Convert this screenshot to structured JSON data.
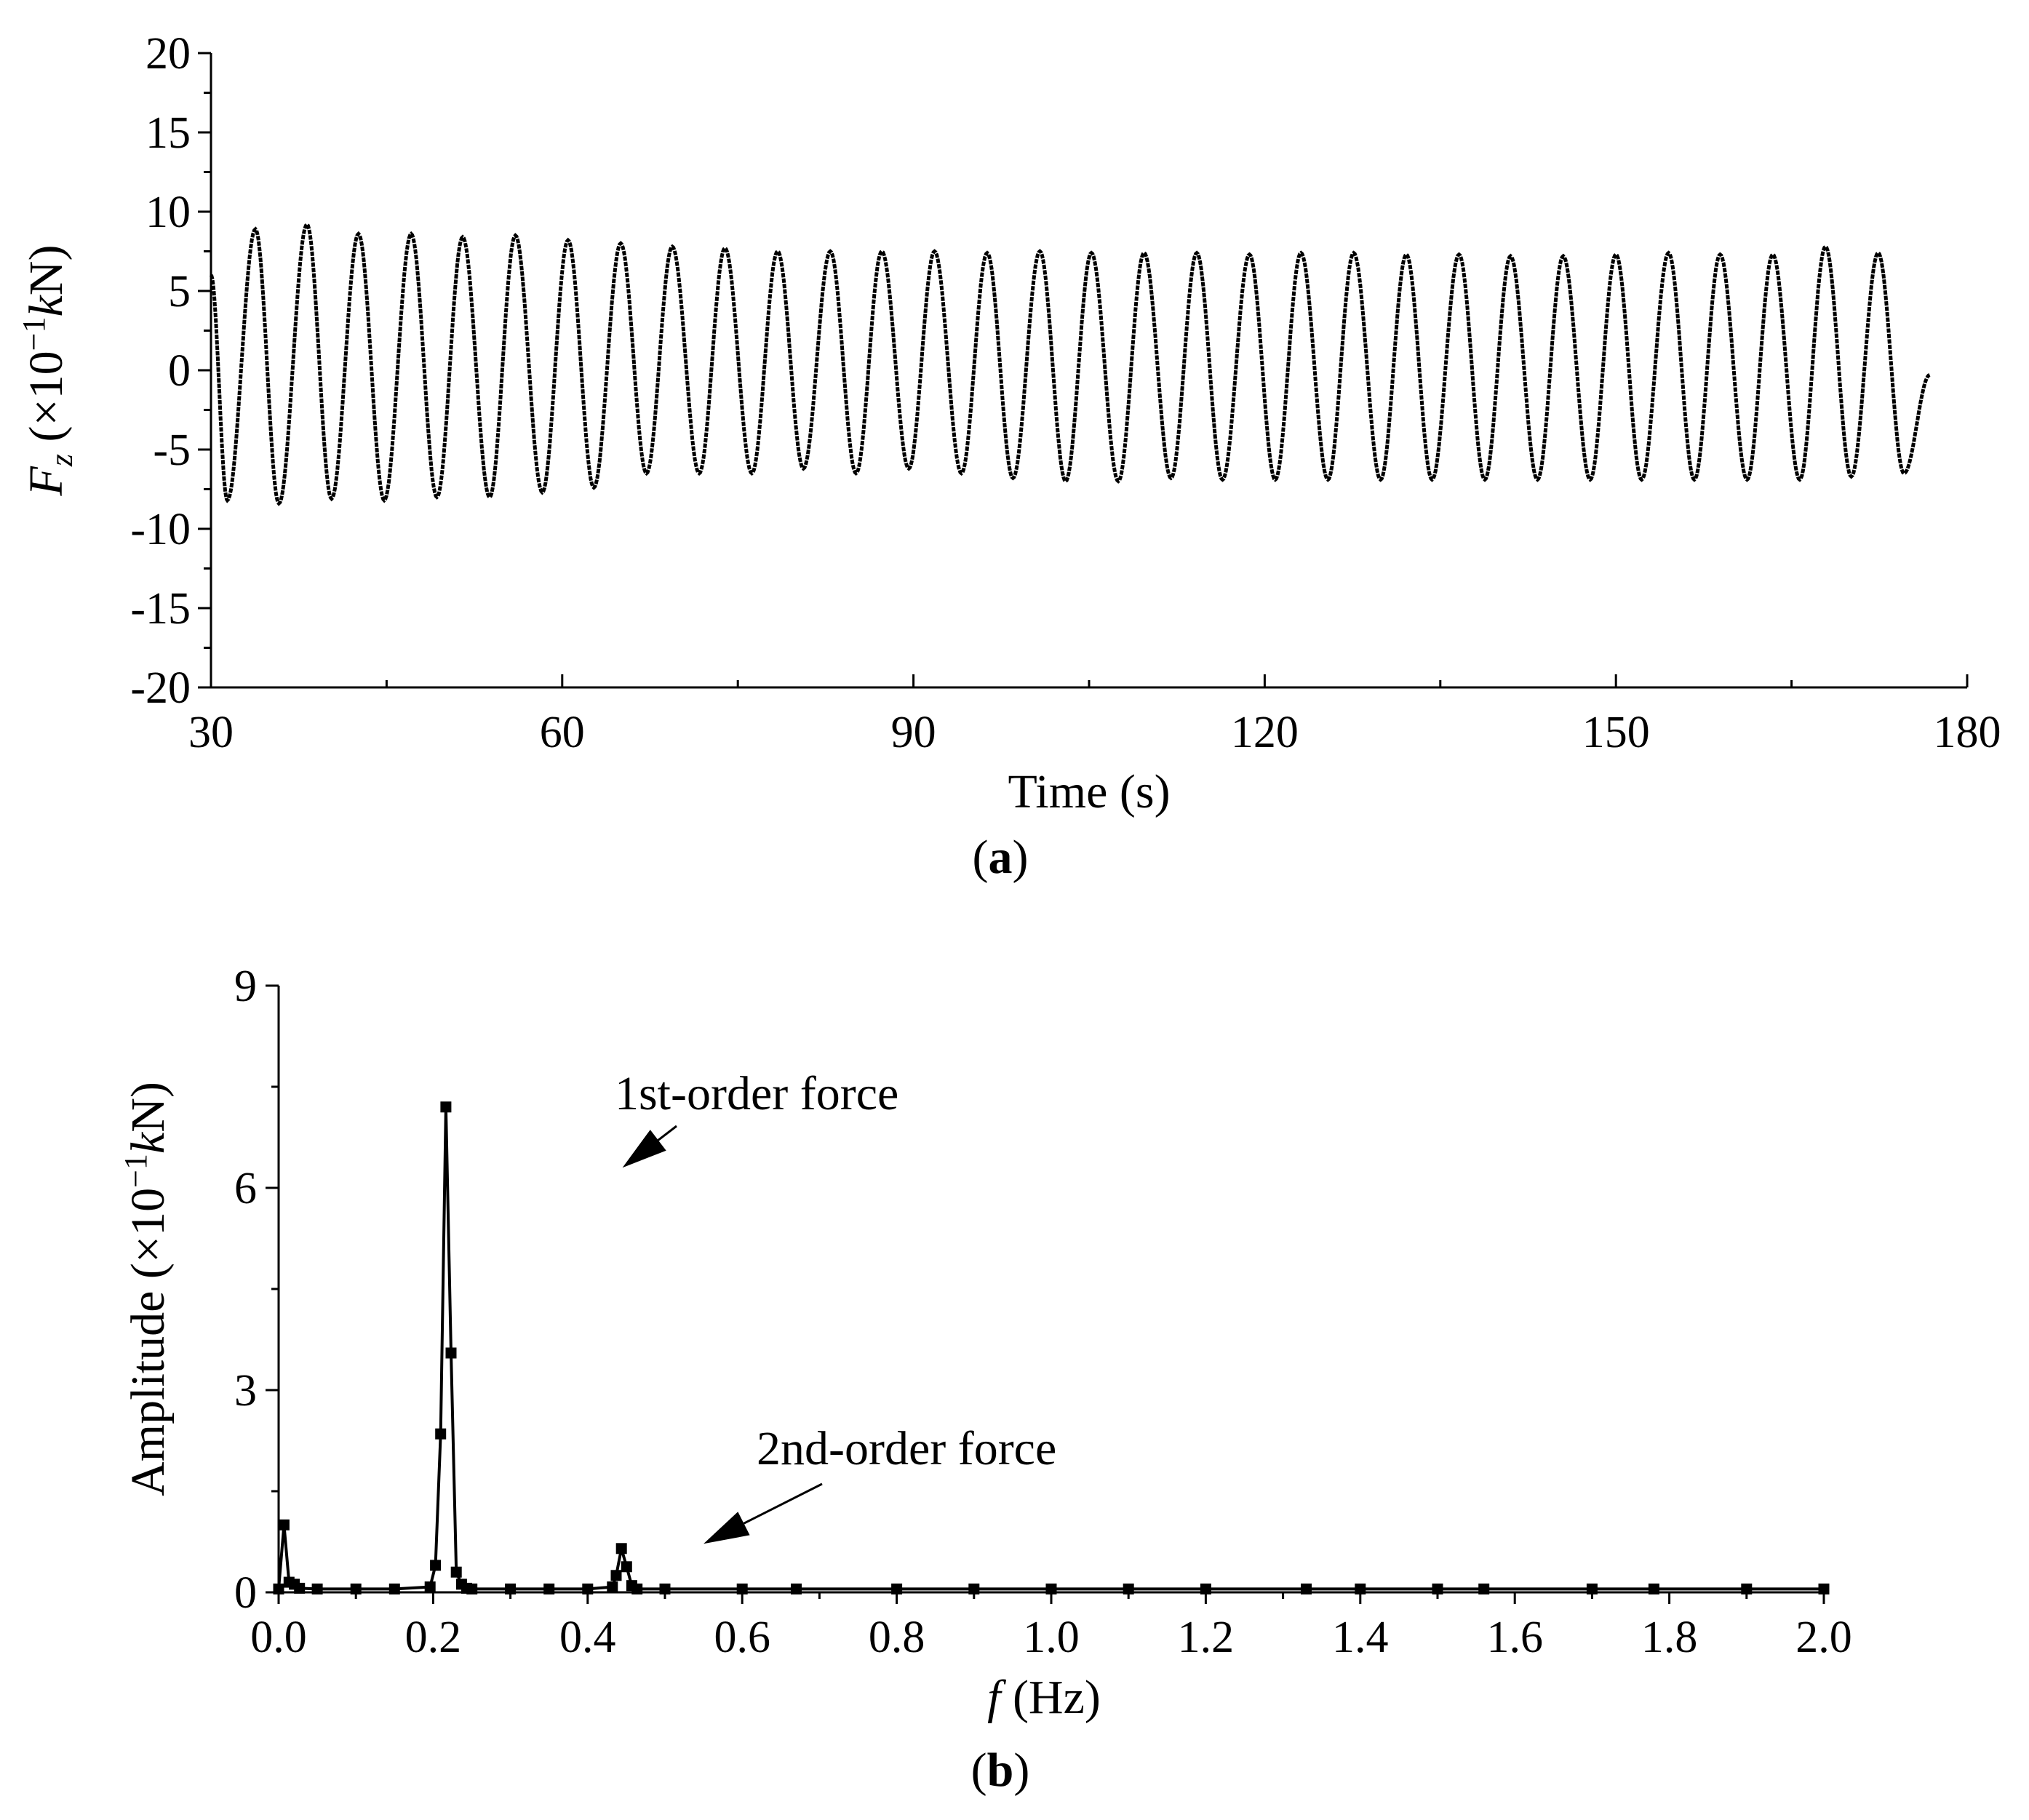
{
  "chart_data": [
    {
      "panel": "(a)",
      "panel_letter": "a",
      "type": "line",
      "xlabel": "Time (s)",
      "ylabel": {
        "var": "F",
        "sub": "z",
        "pre": " (×10",
        "sup": "−1",
        "unit_italic": "k",
        "post": "N)"
      },
      "xlim": [
        30,
        180
      ],
      "ylim": [
        -20,
        20
      ],
      "x_ticks": [
        30,
        60,
        90,
        120,
        150,
        180
      ],
      "y_ticks": [
        -20,
        -15,
        -10,
        -5,
        0,
        5,
        10,
        15,
        20
      ],
      "x_tick_labels": [
        "30",
        "60",
        "90",
        "120",
        "150",
        "180"
      ],
      "y_tick_labels": [
        "-20",
        "-15",
        "-10",
        "-5",
        "0",
        "5",
        "10",
        "15",
        "20"
      ],
      "grid": false,
      "series": [
        {
          "x": [
            30,
            31.4,
            33.8,
            35.8,
            38.2,
            40.3,
            42.6,
            44.8,
            47.1,
            49.3,
            51.5,
            53.8,
            56.0,
            58.3,
            60.5,
            62.7,
            65.0,
            67.2,
            69.4,
            71.7,
            73.9,
            76.2,
            78.4,
            80.6,
            82.9,
            85.1,
            87.3,
            89.6,
            91.8,
            94.1,
            96.3,
            98.5,
            100.8,
            103.0,
            105.2,
            107.5,
            109.7,
            112.0,
            114.2,
            116.4,
            118.7,
            120.9,
            123.1,
            125.4,
            127.6,
            129.9,
            132.1,
            134.3,
            136.6,
            138.8,
            141.0,
            143.3,
            145.5,
            147.8,
            150.0,
            152.2,
            154.5,
            156.7,
            158.9,
            161.2,
            163.4,
            165.7,
            167.9,
            170.1,
            172.4,
            174.6,
            176.8
          ],
          "y": [
            6.0,
            -8.2,
            8.9,
            -8.4,
            9.2,
            -8.1,
            8.6,
            -8.2,
            8.6,
            -8.0,
            8.4,
            -8.0,
            8.5,
            -7.7,
            8.2,
            -7.4,
            8.0,
            -6.5,
            7.8,
            -6.5,
            7.7,
            -6.5,
            7.5,
            -6.2,
            7.5,
            -6.5,
            7.5,
            -6.2,
            7.5,
            -6.5,
            7.4,
            -6.8,
            7.5,
            -7.0,
            7.4,
            -7.0,
            7.4,
            -6.8,
            7.4,
            -6.9,
            7.3,
            -6.9,
            7.4,
            -6.9,
            7.4,
            -6.9,
            7.3,
            -6.9,
            7.3,
            -6.9,
            7.2,
            -6.9,
            7.2,
            -6.9,
            7.3,
            -6.9,
            7.4,
            -6.9,
            7.3,
            -6.9,
            7.3,
            -6.9,
            7.8,
            -6.7,
            7.4,
            -6.5,
            -0.3
          ]
        }
      ]
    },
    {
      "panel": "(b)",
      "panel_letter": "b",
      "type": "line",
      "xlabel": {
        "var": "f",
        "rest": " (Hz)"
      },
      "ylabel": {
        "pre": "Amplitude (×10",
        "sup": "−1",
        "unit_italic": "k",
        "post": "N)"
      },
      "xlim": [
        0.0,
        2.0
      ],
      "ylim": [
        0,
        9
      ],
      "x_ticks": [
        0.0,
        0.2,
        0.4,
        0.6,
        0.8,
        1.0,
        1.2,
        1.4,
        1.6,
        1.8,
        2.0
      ],
      "y_ticks": [
        0,
        3,
        6,
        9
      ],
      "x_tick_labels": [
        "0.0",
        "0.2",
        "0.4",
        "0.6",
        "0.8",
        "1.0",
        "1.2",
        "1.4",
        "1.6",
        "1.8",
        "2.0"
      ],
      "y_tick_labels": [
        "0",
        "3",
        "6",
        "9"
      ],
      "grid": false,
      "markers": "filled-square",
      "series": [
        {
          "x": [
            0.0,
            0.007,
            0.0135,
            0.0203,
            0.027,
            0.05,
            0.1,
            0.15,
            0.196,
            0.203,
            0.2097,
            0.2165,
            0.2232,
            0.2299,
            0.2367,
            0.2434,
            0.2502,
            0.3,
            0.35,
            0.4,
            0.432,
            0.4369,
            0.4437,
            0.4504,
            0.4571,
            0.4639,
            0.5,
            0.6,
            0.67,
            0.8,
            0.9,
            1.0,
            1.1,
            1.2,
            1.33,
            1.4,
            1.5,
            1.56,
            1.7,
            1.78,
            1.9,
            2.0
          ],
          "y": [
            0.05,
            1.0,
            0.15,
            0.12,
            0.06,
            0.05,
            0.05,
            0.05,
            0.08,
            0.4,
            2.35,
            7.2,
            3.55,
            0.3,
            0.12,
            0.06,
            0.05,
            0.05,
            0.05,
            0.05,
            0.08,
            0.25,
            0.65,
            0.38,
            0.1,
            0.05,
            0.05,
            0.05,
            0.05,
            0.05,
            0.05,
            0.05,
            0.05,
            0.05,
            0.05,
            0.05,
            0.05,
            0.05,
            0.05,
            0.05,
            0.05,
            0.05
          ]
        }
      ],
      "annotations": [
        {
          "text": "1st-order force",
          "arrow_to": [
            0.445,
            6.3
          ]
        },
        {
          "text": "2nd-order force",
          "arrow_to": [
            0.55,
            0.72
          ]
        }
      ]
    }
  ]
}
